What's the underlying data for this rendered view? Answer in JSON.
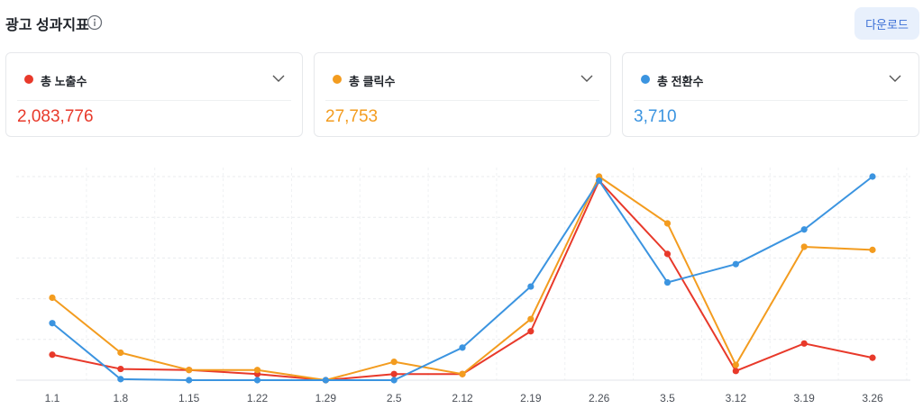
{
  "header": {
    "title": "광고 성과지표",
    "download_label": "다운로드"
  },
  "icons": {
    "info": "info-icon",
    "chevron": "chevron-down-icon"
  },
  "metrics": [
    {
      "label": "총 노출수",
      "value": "2,083,776",
      "color": "#e8392a"
    },
    {
      "label": "총 클릭수",
      "value": "27,753",
      "color": "#f39c1f"
    },
    {
      "label": "총 전환수",
      "value": "3,710",
      "color": "#3b94e0"
    }
  ],
  "chart_data": {
    "type": "line",
    "categories": [
      "1.1",
      "1.8",
      "1.15",
      "1.22",
      "1.29",
      "2.5",
      "2.12",
      "2.19",
      "2.26",
      "3.5",
      "3.12",
      "3.19",
      "3.26"
    ],
    "ylim": [
      0,
      100
    ],
    "grid": true,
    "series": [
      {
        "name": "총 노출수",
        "color": "#e8392a",
        "values": [
          12.5,
          5.5,
          5,
          3,
          0,
          3,
          3,
          24,
          98,
          62,
          4.5,
          18,
          11
        ]
      },
      {
        "name": "총 클릭수",
        "color": "#f39c1f",
        "values": [
          40.5,
          13.5,
          5,
          5,
          0,
          9,
          3,
          30,
          100,
          77,
          7.5,
          65.5,
          64
        ]
      },
      {
        "name": "총 전환수",
        "color": "#3b94e0",
        "values": [
          28,
          0.5,
          0,
          0,
          0,
          0,
          16,
          46,
          98,
          48,
          57,
          74,
          100
        ]
      }
    ]
  }
}
